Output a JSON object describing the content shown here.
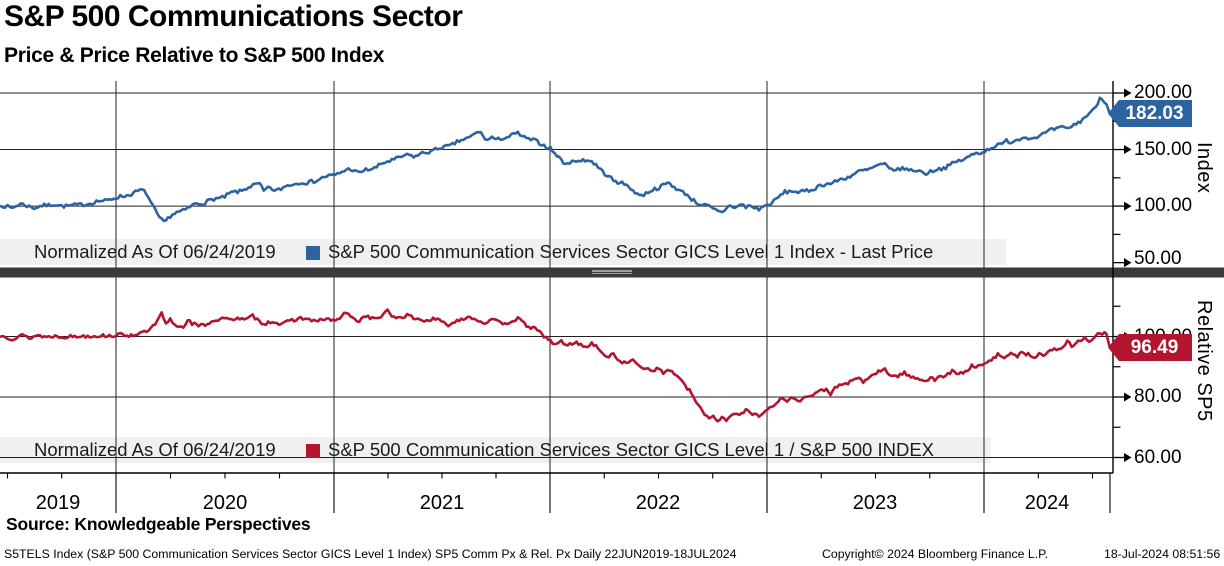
{
  "header": {
    "title": "S&P 500 Communications Sector",
    "subtitle": "Price & Price Relative to S&P 500 Index"
  },
  "colors": {
    "blue": "#2d63a0",
    "red": "#b31430",
    "legend_band": "#f0f0f0",
    "divider": "#3a3a3a",
    "grid": "#222222",
    "axis": "#000000"
  },
  "top_panel": {
    "axis_title": "Index",
    "legend_prefix": "Normalized As Of 06/24/2019",
    "legend_series": "S&P 500 Communication Services Sector GICS Level 1 Index - Last Price",
    "last_price": "182.03",
    "ticks": [
      "200.00",
      "150.00",
      "100.00",
      "50.00"
    ]
  },
  "bottom_panel": {
    "axis_title": "Relative SP5",
    "legend_prefix": "Normalized As Of 06/24/2019",
    "legend_series": "S&P 500 Communication Services Sector GICS Level 1 / S&P 500 INDEX",
    "last_price": "96.49",
    "ticks": [
      "100.00",
      "80.00",
      "60.00"
    ]
  },
  "x_axis": {
    "years": [
      "2019",
      "2020",
      "2021",
      "2022",
      "2023",
      "2024"
    ]
  },
  "source_line": "Source: Knowledgeable Perspectives",
  "footer": {
    "left": "S5TELS Index (S&P 500 Communication Services Sector GICS Level 1 Index) SP5 Comm Px & Rel. Px  Daily 22JUN2019-18JUL2024",
    "copyright": "Copyright© 2024 Bloomberg Finance L.P.",
    "datetime": "18-Jul-2024 08:51:56"
  },
  "chart_data": [
    {
      "type": "line",
      "name": "S&P 500 Communication Services Sector GICS Level 1 Index - Last Price",
      "panel": "top",
      "color_key": "blue",
      "normalized_as_of": "06/24/2019",
      "last_value": 182.03,
      "ylabel": "Index",
      "yticks": [
        50,
        100,
        150,
        200
      ],
      "ylim": [
        42,
        211
      ],
      "x_years": [
        2019.47,
        2024.575
      ],
      "noise": 1.6,
      "points": [
        [
          2019.47,
          100
        ],
        [
          2019.52,
          99
        ],
        [
          2019.56,
          101.5
        ],
        [
          2019.6,
          100
        ],
        [
          2019.63,
          98.5
        ],
        [
          2019.67,
          100.5
        ],
        [
          2019.71,
          102
        ],
        [
          2019.75,
          99.5
        ],
        [
          2019.79,
          101
        ],
        [
          2019.83,
          100.5
        ],
        [
          2019.87,
          102.5
        ],
        [
          2019.92,
          104
        ],
        [
          2019.96,
          105.5
        ],
        [
          2020,
          107
        ],
        [
          2020.04,
          109.5
        ],
        [
          2020.08,
          111
        ],
        [
          2020.12,
          114.5
        ],
        [
          2020.14,
          112
        ],
        [
          2020.16,
          103
        ],
        [
          2020.19,
          92
        ],
        [
          2020.22,
          86
        ],
        [
          2020.25,
          91
        ],
        [
          2020.29,
          95
        ],
        [
          2020.33,
          98
        ],
        [
          2020.37,
          102
        ],
        [
          2020.42,
          104
        ],
        [
          2020.46,
          106.5
        ],
        [
          2020.5,
          108.5
        ],
        [
          2020.54,
          112
        ],
        [
          2020.58,
          114
        ],
        [
          2020.62,
          117
        ],
        [
          2020.66,
          120.5
        ],
        [
          2020.68,
          113.5
        ],
        [
          2020.71,
          116
        ],
        [
          2020.73,
          113.5
        ],
        [
          2020.77,
          116.5
        ],
        [
          2020.81,
          119
        ],
        [
          2020.85,
          121.5
        ],
        [
          2020.88,
          120
        ],
        [
          2020.92,
          123
        ],
        [
          2020.96,
          125.5
        ],
        [
          2021,
          127.5
        ],
        [
          2021.04,
          130
        ],
        [
          2021.08,
          133
        ],
        [
          2021.12,
          129.5
        ],
        [
          2021.15,
          131.5
        ],
        [
          2021.19,
          134
        ],
        [
          2021.23,
          137.5
        ],
        [
          2021.27,
          141
        ],
        [
          2021.31,
          143
        ],
        [
          2021.35,
          145.5
        ],
        [
          2021.38,
          144
        ],
        [
          2021.42,
          147
        ],
        [
          2021.46,
          149.5
        ],
        [
          2021.5,
          151.5
        ],
        [
          2021.54,
          154
        ],
        [
          2021.58,
          157
        ],
        [
          2021.62,
          160.5
        ],
        [
          2021.65,
          163.5
        ],
        [
          2021.67,
          165.5
        ],
        [
          2021.69,
          162
        ],
        [
          2021.71,
          158.5
        ],
        [
          2021.73,
          161.5
        ],
        [
          2021.75,
          157.5
        ],
        [
          2021.77,
          159.5
        ],
        [
          2021.81,
          162
        ],
        [
          2021.85,
          164
        ],
        [
          2021.88,
          161
        ],
        [
          2021.92,
          158
        ],
        [
          2021.96,
          155
        ],
        [
          2022,
          151
        ],
        [
          2022.02,
          146
        ],
        [
          2022.05,
          141
        ],
        [
          2022.08,
          136.5
        ],
        [
          2022.1,
          141
        ],
        [
          2022.12,
          138
        ],
        [
          2022.15,
          142
        ],
        [
          2022.19,
          139
        ],
        [
          2022.23,
          133
        ],
        [
          2022.27,
          125.5
        ],
        [
          2022.31,
          119.5
        ],
        [
          2022.33,
          123.5
        ],
        [
          2022.35,
          117.5
        ],
        [
          2022.38,
          113.5
        ],
        [
          2022.42,
          109.5
        ],
        [
          2022.46,
          113
        ],
        [
          2022.5,
          117
        ],
        [
          2022.54,
          120
        ],
        [
          2022.58,
          116
        ],
        [
          2022.62,
          111
        ],
        [
          2022.65,
          106
        ],
        [
          2022.69,
          102
        ],
        [
          2022.73,
          99
        ],
        [
          2022.77,
          96
        ],
        [
          2022.79,
          94
        ],
        [
          2022.81,
          97.5
        ],
        [
          2022.83,
          101
        ],
        [
          2022.85,
          99
        ],
        [
          2022.88,
          101.5
        ],
        [
          2022.9,
          98.5
        ],
        [
          2022.92,
          100.5
        ],
        [
          2022.96,
          97.5
        ],
        [
          2023,
          100.5
        ],
        [
          2023.04,
          106.5
        ],
        [
          2023.08,
          112
        ],
        [
          2023.12,
          114
        ],
        [
          2023.15,
          111.5
        ],
        [
          2023.19,
          114
        ],
        [
          2023.23,
          117
        ],
        [
          2023.27,
          119.5
        ],
        [
          2023.31,
          121.5
        ],
        [
          2023.35,
          124
        ],
        [
          2023.38,
          127
        ],
        [
          2023.42,
          130
        ],
        [
          2023.46,
          132.5
        ],
        [
          2023.5,
          135
        ],
        [
          2023.54,
          137
        ],
        [
          2023.56,
          133.5
        ],
        [
          2023.6,
          131.5
        ],
        [
          2023.63,
          134
        ],
        [
          2023.65,
          132
        ],
        [
          2023.69,
          131
        ],
        [
          2023.73,
          129.5
        ],
        [
          2023.77,
          131.5
        ],
        [
          2023.81,
          134
        ],
        [
          2023.85,
          137
        ],
        [
          2023.88,
          140
        ],
        [
          2023.92,
          143
        ],
        [
          2023.96,
          146.5
        ],
        [
          2024,
          149
        ],
        [
          2024.04,
          152
        ],
        [
          2024.08,
          155.5
        ],
        [
          2024.1,
          158
        ],
        [
          2024.12,
          156
        ],
        [
          2024.15,
          159
        ],
        [
          2024.19,
          162
        ],
        [
          2024.21,
          158.5
        ],
        [
          2024.23,
          161
        ],
        [
          2024.27,
          164
        ],
        [
          2024.31,
          167
        ],
        [
          2024.35,
          170
        ],
        [
          2024.38,
          168
        ],
        [
          2024.42,
          173
        ],
        [
          2024.46,
          178
        ],
        [
          2024.5,
          185
        ],
        [
          2024.53,
          196
        ],
        [
          2024.56,
          191
        ],
        [
          2024.575,
          182.03
        ]
      ]
    },
    {
      "type": "line",
      "name": "S&P 500 Communication Services Sector GICS Level 1 / S&P 500 INDEX",
      "panel": "bottom",
      "color_key": "red",
      "normalized_as_of": "06/24/2019",
      "last_value": 96.49,
      "ylabel": "Relative SP5",
      "yticks": [
        60,
        80,
        100
      ],
      "ylim": [
        55,
        118
      ],
      "x_years": [
        2019.47,
        2024.575
      ],
      "noise": 0.55,
      "points": [
        [
          2019.47,
          100
        ],
        [
          2019.52,
          99.4
        ],
        [
          2019.56,
          100.3
        ],
        [
          2019.6,
          99.6
        ],
        [
          2019.63,
          100.4
        ],
        [
          2019.67,
          99.8
        ],
        [
          2019.71,
          100.3
        ],
        [
          2019.75,
          99.7
        ],
        [
          2019.79,
          100.2
        ],
        [
          2019.83,
          99.8
        ],
        [
          2019.87,
          100.4
        ],
        [
          2019.92,
          100
        ],
        [
          2019.96,
          100.5
        ],
        [
          2020,
          100.2
        ],
        [
          2020.04,
          100.7
        ],
        [
          2020.08,
          100.4
        ],
        [
          2020.12,
          101.2
        ],
        [
          2020.15,
          102.2
        ],
        [
          2020.18,
          103.6
        ],
        [
          2020.21,
          107.6
        ],
        [
          2020.23,
          104.2
        ],
        [
          2020.25,
          105.6
        ],
        [
          2020.27,
          103.6
        ],
        [
          2020.31,
          103.2
        ],
        [
          2020.33,
          105.9
        ],
        [
          2020.35,
          104.1
        ],
        [
          2020.38,
          103.5
        ],
        [
          2020.42,
          104.3
        ],
        [
          2020.46,
          105.3
        ],
        [
          2020.5,
          106.4
        ],
        [
          2020.52,
          105.2
        ],
        [
          2020.56,
          106.3
        ],
        [
          2020.6,
          105.5
        ],
        [
          2020.63,
          106.7
        ],
        [
          2020.66,
          105.1
        ],
        [
          2020.69,
          104.3
        ],
        [
          2020.73,
          104.9
        ],
        [
          2020.77,
          104.1
        ],
        [
          2020.81,
          105.3
        ],
        [
          2020.85,
          106.3
        ],
        [
          2020.88,
          105.5
        ],
        [
          2020.92,
          105.1
        ],
        [
          2020.96,
          105.7
        ],
        [
          2021,
          105.3
        ],
        [
          2021.04,
          106.5
        ],
        [
          2021.06,
          107.9
        ],
        [
          2021.08,
          106.3
        ],
        [
          2021.12,
          105.3
        ],
        [
          2021.15,
          106.7
        ],
        [
          2021.19,
          105.9
        ],
        [
          2021.23,
          106.9
        ],
        [
          2021.25,
          108.3
        ],
        [
          2021.27,
          107
        ],
        [
          2021.31,
          106.1
        ],
        [
          2021.35,
          107.1
        ],
        [
          2021.38,
          105.9
        ],
        [
          2021.42,
          105.1
        ],
        [
          2021.46,
          105.9
        ],
        [
          2021.5,
          104.9
        ],
        [
          2021.52,
          103.7
        ],
        [
          2021.56,
          104.9
        ],
        [
          2021.6,
          105.9
        ],
        [
          2021.63,
          106.9
        ],
        [
          2021.65,
          105.7
        ],
        [
          2021.69,
          104.5
        ],
        [
          2021.73,
          105.5
        ],
        [
          2021.77,
          104.3
        ],
        [
          2021.81,
          104.9
        ],
        [
          2021.85,
          105.7
        ],
        [
          2021.88,
          104.3
        ],
        [
          2021.92,
          102.7
        ],
        [
          2021.96,
          100.9
        ],
        [
          2022,
          98.7
        ],
        [
          2022.02,
          96.9
        ],
        [
          2022.05,
          98.5
        ],
        [
          2022.08,
          97.1
        ],
        [
          2022.12,
          98.1
        ],
        [
          2022.15,
          96.7
        ],
        [
          2022.19,
          97.5
        ],
        [
          2022.23,
          95.5
        ],
        [
          2022.27,
          92.7
        ],
        [
          2022.29,
          94.3
        ],
        [
          2022.31,
          92.5
        ],
        [
          2022.35,
          91.1
        ],
        [
          2022.38,
          91.9
        ],
        [
          2022.42,
          90.3
        ],
        [
          2022.46,
          88.7
        ],
        [
          2022.5,
          89.5
        ],
        [
          2022.52,
          87.9
        ],
        [
          2022.54,
          88.9
        ],
        [
          2022.58,
          87.5
        ],
        [
          2022.6,
          85.7
        ],
        [
          2022.62,
          83.5
        ],
        [
          2022.65,
          81.1
        ],
        [
          2022.67,
          78.5
        ],
        [
          2022.69,
          76.3
        ],
        [
          2022.71,
          74.5
        ],
        [
          2022.73,
          72.7
        ],
        [
          2022.75,
          73.9
        ],
        [
          2022.77,
          72.3
        ],
        [
          2022.79,
          73.5
        ],
        [
          2022.81,
          72.1
        ],
        [
          2022.83,
          73.7
        ],
        [
          2022.85,
          75.1
        ],
        [
          2022.88,
          74.1
        ],
        [
          2022.9,
          75.5
        ],
        [
          2022.92,
          74.7
        ],
        [
          2022.96,
          74.1
        ],
        [
          2023,
          75.7
        ],
        [
          2023.04,
          77.9
        ],
        [
          2023.06,
          79.7
        ],
        [
          2023.08,
          78.5
        ],
        [
          2023.12,
          79.9
        ],
        [
          2023.15,
          78.9
        ],
        [
          2023.19,
          80.3
        ],
        [
          2023.23,
          81.5
        ],
        [
          2023.27,
          82.5
        ],
        [
          2023.29,
          81.3
        ],
        [
          2023.31,
          82.9
        ],
        [
          2023.35,
          84.1
        ],
        [
          2023.38,
          85.1
        ],
        [
          2023.42,
          86.1
        ],
        [
          2023.44,
          84.9
        ],
        [
          2023.46,
          86.3
        ],
        [
          2023.5,
          87.9
        ],
        [
          2023.54,
          89
        ],
        [
          2023.56,
          87.6
        ],
        [
          2023.6,
          86.8
        ],
        [
          2023.63,
          88
        ],
        [
          2023.65,
          87
        ],
        [
          2023.69,
          86.2
        ],
        [
          2023.73,
          85.4
        ],
        [
          2023.75,
          86.6
        ],
        [
          2023.77,
          85.6
        ],
        [
          2023.81,
          87
        ],
        [
          2023.85,
          88.4
        ],
        [
          2023.88,
          87.4
        ],
        [
          2023.92,
          88.8
        ],
        [
          2023.94,
          90.6
        ],
        [
          2023.96,
          89.6
        ],
        [
          2024,
          91
        ],
        [
          2024.04,
          92.6
        ],
        [
          2024.06,
          94.2
        ],
        [
          2024.08,
          93
        ],
        [
          2024.12,
          94.6
        ],
        [
          2024.15,
          93.4
        ],
        [
          2024.17,
          95.2
        ],
        [
          2024.19,
          94.2
        ],
        [
          2024.23,
          93.2
        ],
        [
          2024.25,
          94.8
        ],
        [
          2024.27,
          93.8
        ],
        [
          2024.31,
          95.2
        ],
        [
          2024.35,
          96.6
        ],
        [
          2024.38,
          98
        ],
        [
          2024.4,
          96.8
        ],
        [
          2024.42,
          98.2
        ],
        [
          2024.46,
          99.4
        ],
        [
          2024.48,
          98.2
        ],
        [
          2024.5,
          99.6
        ],
        [
          2024.52,
          100.8
        ],
        [
          2024.54,
          101.2
        ],
        [
          2024.56,
          100.4
        ],
        [
          2024.575,
          96.49
        ]
      ]
    }
  ]
}
